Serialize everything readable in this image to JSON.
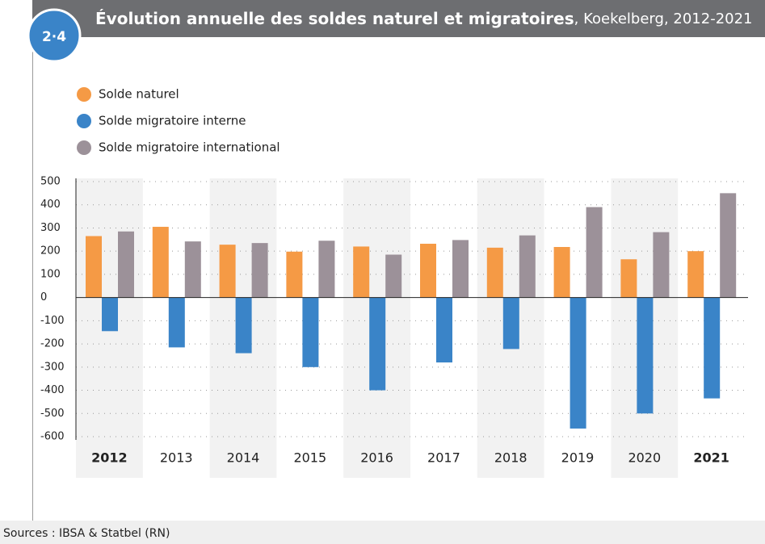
{
  "badge": "2·4",
  "title_main": "Évolution annuelle des soldes naturel et migratoires",
  "title_rest": ", Koekelberg, 2012-2021",
  "source": "Sources : IBSA & Statbel (RN)",
  "chart_data": {
    "type": "bar",
    "categories": [
      "2012",
      "2013",
      "2014",
      "2015",
      "2016",
      "2017",
      "2018",
      "2019",
      "2020",
      "2021"
    ],
    "bold_categories": [
      "2012",
      "2021"
    ],
    "series": [
      {
        "name": "Solde naturel",
        "color": "#f59a45",
        "values": [
          265,
          305,
          228,
          198,
          220,
          232,
          215,
          218,
          165,
          200
        ]
      },
      {
        "name": "Solde migratoire interne",
        "color": "#3a84c8",
        "values": [
          -145,
          -215,
          -240,
          -300,
          -400,
          -280,
          -222,
          -565,
          -500,
          -435
        ]
      },
      {
        "name": "Solde migratoire international",
        "color": "#9c9199",
        "values": [
          285,
          242,
          235,
          245,
          185,
          248,
          268,
          390,
          282,
          450
        ]
      }
    ],
    "ylim": [
      -600,
      500
    ],
    "yticks": [
      500,
      400,
      300,
      200,
      100,
      0,
      -100,
      -200,
      -300,
      -400,
      -500,
      -600
    ],
    "grid": true
  }
}
